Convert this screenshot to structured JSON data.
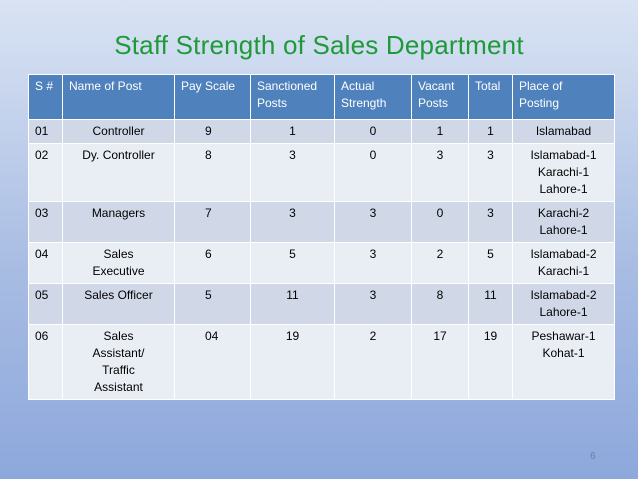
{
  "slide": {
    "title": "Staff Strength of Sales Department",
    "page_number": "6"
  },
  "table": {
    "headers": [
      "S #",
      "Name of Post",
      "Pay Scale",
      "Sanctioned\nPosts",
      "Actual\nStrength",
      "Vacant\nPosts",
      "Total",
      "Place of\nPosting"
    ],
    "rows": [
      [
        "01",
        "Controller",
        "9",
        "1",
        "0",
        "1",
        "1",
        "Islamabad"
      ],
      [
        "02",
        "Dy. Controller",
        "8",
        "3",
        "0",
        "3",
        "3",
        "Islamabad-1\nKarachi-1\nLahore-1"
      ],
      [
        "03",
        "Managers",
        "7",
        "3",
        "3",
        "0",
        "3",
        "Karachi-2\nLahore-1"
      ],
      [
        "04",
        "Sales\nExecutive",
        "6",
        "5",
        "3",
        "2",
        "5",
        "Islamabad-2\nKarachi-1"
      ],
      [
        "05",
        "Sales Officer",
        "5",
        "11",
        "3",
        "8",
        "11",
        "Islamabad-2\nLahore-1"
      ],
      [
        "06",
        "Sales\nAssistant/\nTraffic\nAssistant",
        "04",
        "19",
        "2",
        "17",
        "19",
        "Peshawar-1\nKohat-1"
      ]
    ]
  },
  "colors": {
    "title": "#1f9a3a",
    "header_bg": "#4f81bd",
    "row_odd_bg": "#d0d8e8",
    "row_even_bg": "#e9edf4"
  }
}
